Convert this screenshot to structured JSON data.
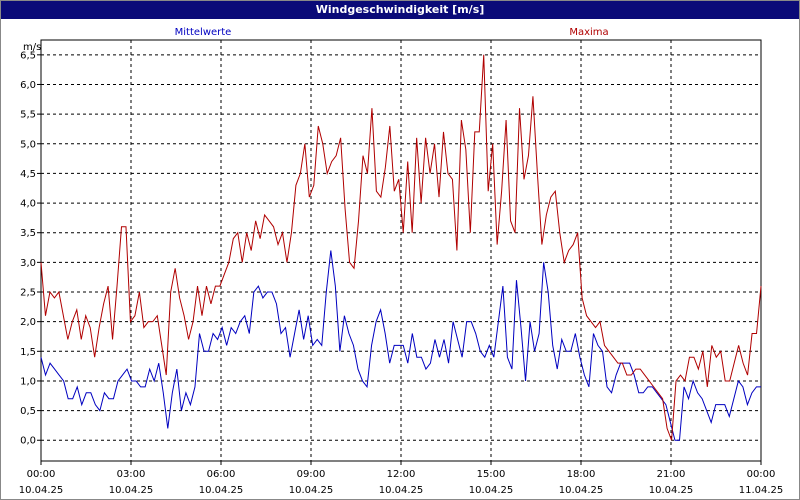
{
  "window": {
    "title": "Windgeschwindigkeit [m/s]"
  },
  "chart_data": {
    "type": "line",
    "title": "Windgeschwindigkeit [m/s]",
    "ylabel": "m/s",
    "ylim": [
      -0.35,
      6.75
    ],
    "yticks": [
      "0,0",
      "0,5",
      "1,0",
      "1,5",
      "2,0",
      "2,5",
      "3,0",
      "3,5",
      "4,0",
      "4,5",
      "5,0",
      "5,5",
      "6,0",
      "6,5"
    ],
    "xlim_hours": [
      0,
      24
    ],
    "xticks": [
      {
        "time": "00:00",
        "date": "10.04.25"
      },
      {
        "time": "03:00",
        "date": "10.04.25"
      },
      {
        "time": "06:00",
        "date": "10.04.25"
      },
      {
        "time": "09:00",
        "date": "10.04.25"
      },
      {
        "time": "12:00",
        "date": "10.04.25"
      },
      {
        "time": "15:00",
        "date": "10.04.25"
      },
      {
        "time": "18:00",
        "date": "10.04.25"
      },
      {
        "time": "21:00",
        "date": "10.04.25"
      },
      {
        "time": "00:00",
        "date": "11.04.25"
      }
    ],
    "grid": true,
    "series": [
      {
        "name": "Mittelwerte",
        "color": "#0000c0",
        "values": [
          1.4,
          1.1,
          1.3,
          1.2,
          1.1,
          1.0,
          0.7,
          0.7,
          0.9,
          0.6,
          0.8,
          0.8,
          0.6,
          0.5,
          0.8,
          0.7,
          0.7,
          1.0,
          1.1,
          1.2,
          1.0,
          1.0,
          0.9,
          0.9,
          1.2,
          1.0,
          1.3,
          0.8,
          0.2,
          0.8,
          1.2,
          0.5,
          0.8,
          0.6,
          0.9,
          1.8,
          1.5,
          1.5,
          1.8,
          1.7,
          1.9,
          1.6,
          1.9,
          1.8,
          2.0,
          2.1,
          1.8,
          2.5,
          2.6,
          2.4,
          2.5,
          2.5,
          2.3,
          1.8,
          1.9,
          1.4,
          1.8,
          2.2,
          1.7,
          2.1,
          1.6,
          1.7,
          1.6,
          2.5,
          3.2,
          2.6,
          1.5,
          2.1,
          1.8,
          1.6,
          1.2,
          1.0,
          0.9,
          1.6,
          2.0,
          2.2,
          1.8,
          1.3,
          1.6,
          1.6,
          1.6,
          1.3,
          1.8,
          1.4,
          1.4,
          1.2,
          1.3,
          1.7,
          1.4,
          1.7,
          1.3,
          2.0,
          1.7,
          1.4,
          2.0,
          2.0,
          1.8,
          1.5,
          1.4,
          1.6,
          1.4,
          2.0,
          2.6,
          1.4,
          1.2,
          2.7,
          1.9,
          1.0,
          2.0,
          1.5,
          1.8,
          3.0,
          2.5,
          1.6,
          1.2,
          1.7,
          1.5,
          1.5,
          1.8,
          1.4,
          1.1,
          0.9,
          1.8,
          1.6,
          1.5,
          0.9,
          0.8,
          1.1,
          1.3,
          1.3,
          1.3,
          1.1,
          0.8,
          0.8,
          0.9,
          0.9,
          0.8,
          0.7,
          0.6,
          0.3,
          0.0,
          0.0,
          0.9,
          0.7,
          1.0,
          0.8,
          0.7,
          0.5,
          0.3,
          0.6,
          0.6,
          0.6,
          0.4,
          0.7,
          1.0,
          0.9,
          0.6,
          0.8,
          0.9,
          0.9
        ]
      },
      {
        "name": "Maxima",
        "color": "#b00000",
        "values": [
          3.0,
          2.1,
          2.5,
          2.4,
          2.5,
          2.1,
          1.7,
          2.0,
          2.2,
          1.7,
          2.1,
          1.9,
          1.4,
          1.9,
          2.3,
          2.6,
          1.7,
          2.6,
          3.6,
          3.6,
          2.0,
          2.1,
          2.5,
          1.9,
          2.0,
          2.0,
          2.1,
          1.6,
          1.1,
          2.5,
          2.9,
          2.4,
          2.1,
          1.7,
          2.0,
          2.6,
          2.1,
          2.6,
          2.3,
          2.6,
          2.6,
          2.8,
          3.0,
          3.4,
          3.5,
          3.0,
          3.5,
          3.2,
          3.7,
          3.4,
          3.8,
          3.7,
          3.6,
          3.3,
          3.5,
          3.0,
          3.5,
          4.3,
          4.5,
          5.0,
          4.1,
          4.3,
          5.3,
          5.0,
          4.5,
          4.7,
          4.8,
          5.1,
          3.9,
          3.0,
          2.9,
          3.7,
          4.8,
          4.5,
          5.6,
          4.2,
          4.1,
          4.6,
          5.3,
          4.2,
          4.4,
          3.5,
          4.7,
          3.5,
          5.1,
          4.0,
          5.1,
          4.5,
          5.0,
          4.1,
          5.2,
          4.5,
          4.4,
          3.2,
          5.4,
          4.9,
          3.5,
          5.2,
          5.2,
          6.5,
          4.2,
          5.0,
          3.3,
          4.2,
          5.4,
          3.7,
          3.5,
          5.6,
          4.4,
          4.8,
          5.8,
          4.5,
          3.3,
          3.8,
          4.1,
          4.2,
          3.5,
          3.0,
          3.2,
          3.3,
          3.5,
          2.4,
          2.1,
          2.0,
          1.9,
          2.0,
          1.6,
          1.5,
          1.4,
          1.3,
          1.3,
          1.1,
          1.1,
          1.2,
          1.2,
          1.1,
          1.0,
          0.9,
          0.8,
          0.7,
          0.2,
          0.0,
          1.0,
          1.1,
          1.0,
          1.4,
          1.4,
          1.2,
          1.5,
          0.9,
          1.6,
          1.4,
          1.5,
          1.0,
          1.0,
          1.3,
          1.6,
          1.3,
          1.1,
          1.8,
          1.8,
          2.6
        ]
      }
    ]
  }
}
